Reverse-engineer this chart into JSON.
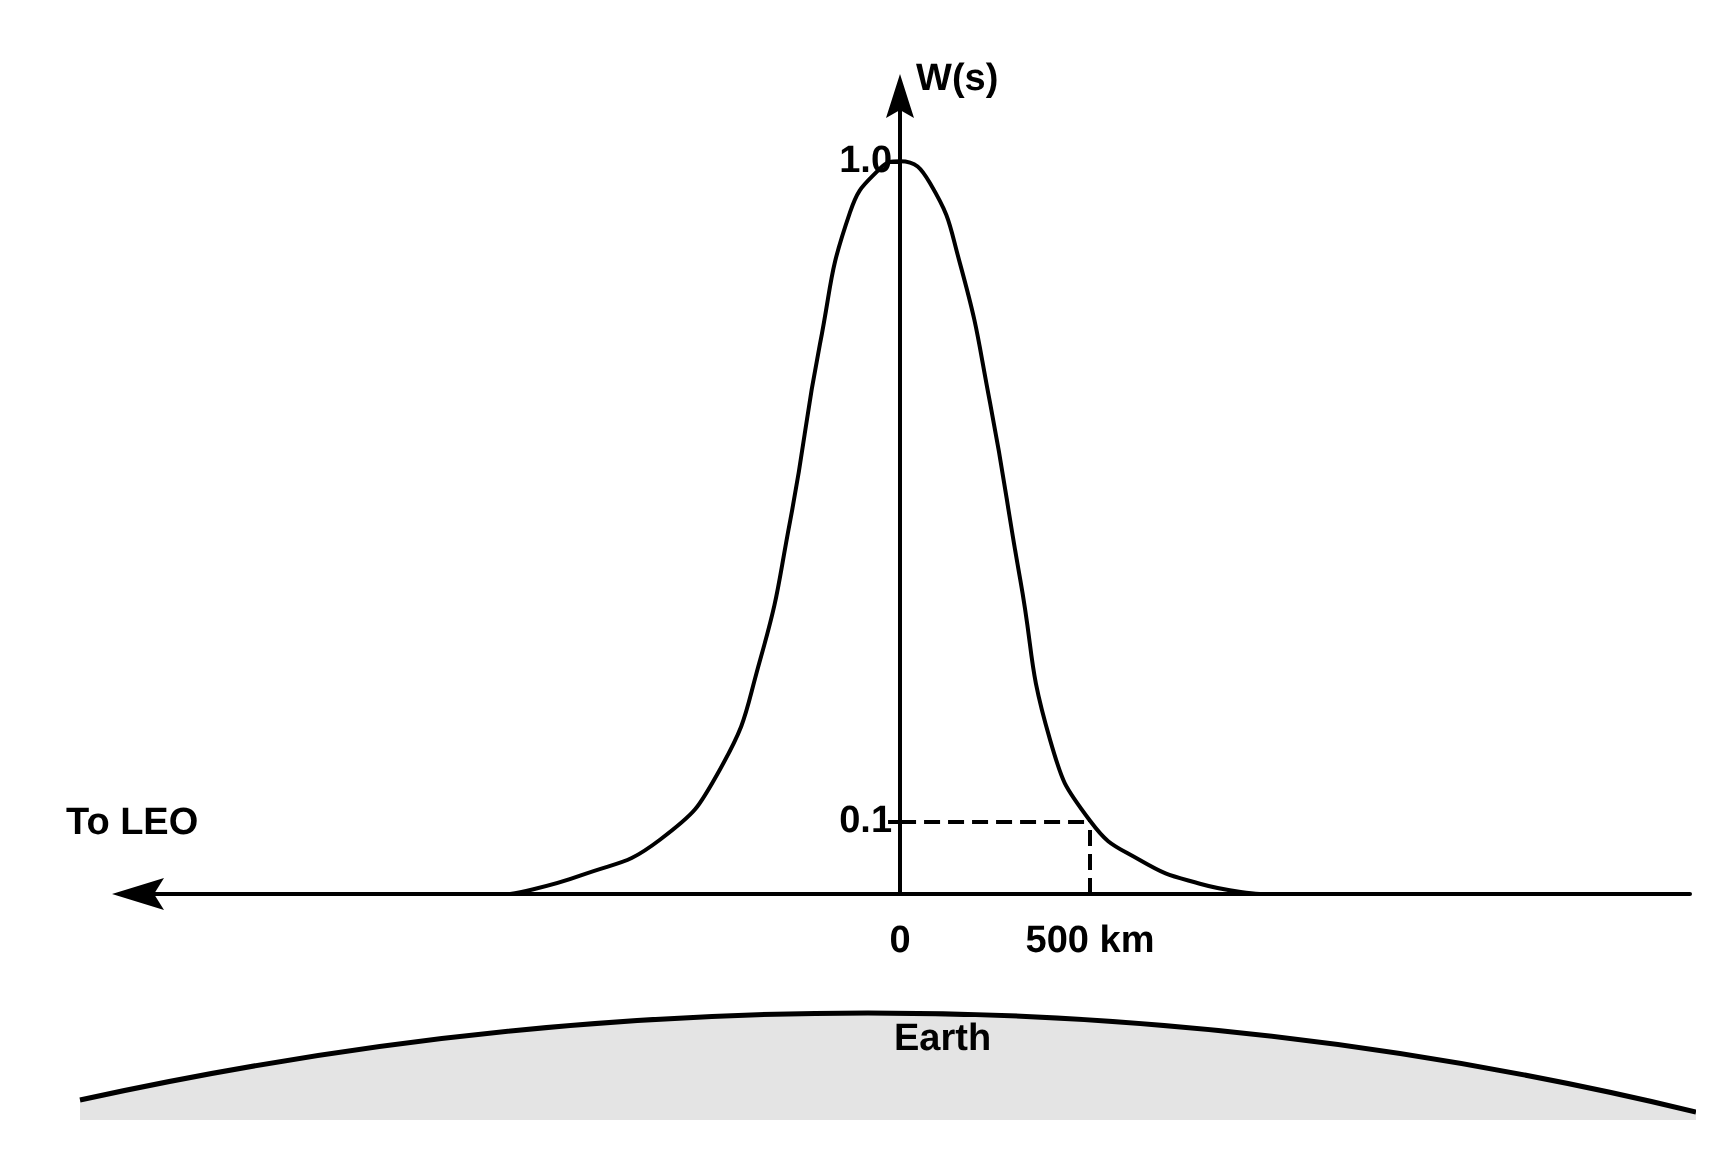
{
  "chart_data": {
    "type": "line",
    "ylabel": "W(s)",
    "x": [
      -1026,
      -842,
      -632,
      -474,
      -368,
      -289,
      -211,
      -132,
      -53,
      0,
      79,
      158,
      237,
      316,
      395,
      500,
      632,
      789,
      947
    ],
    "series": [
      {
        "color": "#000000",
        "values": [
          0,
          0.025,
          0.074,
          0.17,
          0.32,
          0.51,
          0.75,
          0.93,
          0.99,
          1.0,
          0.97,
          0.86,
          0.67,
          0.43,
          0.21,
          0.1,
          0.046,
          0.014,
          0
        ]
      }
    ],
    "xlim": [
      -2053,
      2079
    ],
    "xticks": [
      0,
      {
        "value": 500,
        "label": "500 km"
      }
    ],
    "ylim": [
      0,
      1.07
    ],
    "yticks": [
      0.1,
      {
        "value": 1,
        "label": "1.0"
      }
    ],
    "ref_lines": [
      {
        "axis": "y",
        "value": 0.1,
        "line_style": "dashed",
        "color": "#000000"
      },
      {
        "axis": "x",
        "value": 500,
        "line_style": "dashed",
        "color": "#000000"
      }
    ],
    "annotations": [
      "To LEO",
      "Earth"
    ],
    "marker": "none",
    "line_style": "solid",
    "grid": false
  }
}
